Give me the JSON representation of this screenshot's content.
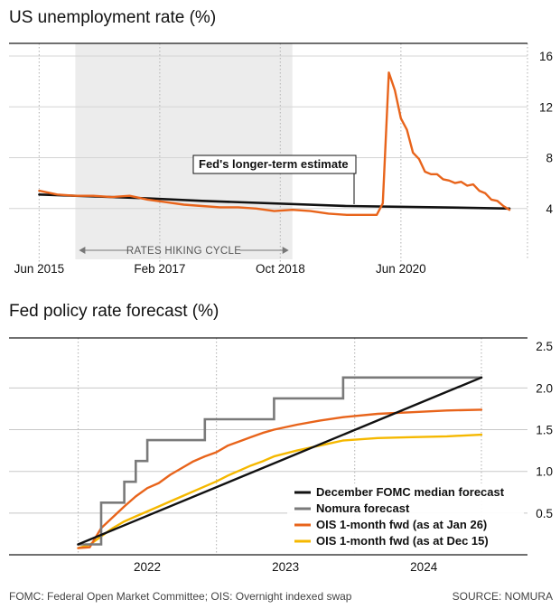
{
  "colors": {
    "black": "#111111",
    "gray": "#7a7a7a",
    "orange": "#e8641b",
    "gold": "#f5b800",
    "band": "#ececec",
    "grid": "#bdbdbd"
  },
  "footer": {
    "note": "FOMC: Federal Open Market Committee; OIS: Overnight indexed swap",
    "source": "SOURCE: NOMURA"
  },
  "chart_data": [
    {
      "type": "line",
      "title": "US unemployment rate (%)",
      "xlabel": "",
      "ylabel": "",
      "x_tick_labels": [
        "Jun 2015",
        "Feb 2017",
        "Oct 2018",
        "Jun 2020"
      ],
      "y_tick_labels": [
        "4",
        "8",
        "12",
        "16"
      ],
      "ylim": [
        0,
        17
      ],
      "grid": true,
      "shaded_band": {
        "label": "RATES HIKING CYCLE",
        "from": "Dec 2015",
        "to": "Dec 2018"
      },
      "annotation": {
        "text": "Fed's longer-term estimate"
      },
      "series": [
        {
          "name": "Unemployment rate",
          "color": "orange",
          "points": [
            [
              "Jun 2015",
              5.4
            ],
            [
              "Sep 2015",
              5.1
            ],
            [
              "Dec 2015",
              5.0
            ],
            [
              "Mar 2016",
              5.0
            ],
            [
              "Jun 2016",
              4.9
            ],
            [
              "Sep 2016",
              5.0
            ],
            [
              "Dec 2016",
              4.7
            ],
            [
              "Mar 2017",
              4.5
            ],
            [
              "Jun 2017",
              4.3
            ],
            [
              "Sep 2017",
              4.2
            ],
            [
              "Dec 2017",
              4.1
            ],
            [
              "Mar 2018",
              4.1
            ],
            [
              "Jun 2018",
              4.0
            ],
            [
              "Sep 2018",
              3.8
            ],
            [
              "Dec 2018",
              3.9
            ],
            [
              "Mar 2019",
              3.8
            ],
            [
              "Jun 2019",
              3.6
            ],
            [
              "Sep 2019",
              3.5
            ],
            [
              "Dec 2019",
              3.5
            ],
            [
              "Feb 2020",
              3.5
            ],
            [
              "Mar 2020",
              4.4
            ],
            [
              "Apr 2020",
              14.7
            ],
            [
              "May 2020",
              13.3
            ],
            [
              "Jun 2020",
              11.1
            ],
            [
              "Jul 2020",
              10.2
            ],
            [
              "Aug 2020",
              8.4
            ],
            [
              "Sep 2020",
              7.9
            ],
            [
              "Oct 2020",
              6.9
            ],
            [
              "Nov 2020",
              6.7
            ],
            [
              "Dec 2020",
              6.7
            ],
            [
              "Jan 2021",
              6.3
            ],
            [
              "Feb 2021",
              6.2
            ],
            [
              "Mar 2021",
              6.0
            ],
            [
              "Apr 2021",
              6.1
            ],
            [
              "May 2021",
              5.8
            ],
            [
              "Jun 2021",
              5.9
            ],
            [
              "Jul 2021",
              5.4
            ],
            [
              "Aug 2021",
              5.2
            ],
            [
              "Sep 2021",
              4.7
            ],
            [
              "Oct 2021",
              4.6
            ],
            [
              "Nov 2021",
              4.2
            ],
            [
              "Dec 2021",
              3.9
            ]
          ]
        },
        {
          "name": "Fed's longer-term estimate",
          "color": "black",
          "points": [
            [
              "Jun 2015",
              5.1
            ],
            [
              "Dec 2016",
              4.8
            ],
            [
              "Sep 2017",
              4.6
            ],
            [
              "Sep 2019",
              4.2
            ],
            [
              "Dec 2020",
              4.1
            ],
            [
              "Dec 2021",
              4.0
            ]
          ]
        }
      ]
    },
    {
      "type": "line",
      "title": "Fed policy rate forecast (%)",
      "xlabel": "",
      "ylabel": "",
      "x_tick_labels": [
        "2022",
        "2023",
        "2024"
      ],
      "y_tick_labels": [
        "0.5",
        "1.0",
        "1.5",
        "2.0",
        "2.5"
      ],
      "ylim": [
        0,
        2.6
      ],
      "grid": true,
      "legend_position": "bottom-right",
      "series": [
        {
          "name": "December FOMC median forecast",
          "color": "black",
          "points": [
            [
              "Jan 2022",
              0.125
            ],
            [
              "Dec 2024",
              2.125
            ]
          ]
        },
        {
          "name": "Nomura forecast",
          "color": "gray",
          "points": [
            [
              "Jan 2022",
              0.125
            ],
            [
              "Mar 2022",
              0.125
            ],
            [
              "Mar 2022",
              0.625
            ],
            [
              "May 2022",
              0.625
            ],
            [
              "May 2022",
              0.875
            ],
            [
              "Jun 2022",
              0.875
            ],
            [
              "Jun 2022",
              1.125
            ],
            [
              "Jul 2022",
              1.125
            ],
            [
              "Jul 2022",
              1.375
            ],
            [
              "Dec 2022",
              1.375
            ],
            [
              "Dec 2022",
              1.625
            ],
            [
              "Jun 2023",
              1.625
            ],
            [
              "Jun 2023",
              1.875
            ],
            [
              "Dec 2023",
              1.875
            ],
            [
              "Dec 2023",
              2.125
            ],
            [
              "Dec 2024",
              2.125
            ]
          ]
        },
        {
          "name": "OIS 1-month fwd (as at Jan 26)",
          "color": "orange",
          "points": [
            [
              "Jan 2022",
              0.08
            ],
            [
              "Feb 2022",
              0.09
            ],
            [
              "Mar 2022",
              0.32
            ],
            [
              "Apr 2022",
              0.45
            ],
            [
              "May 2022",
              0.58
            ],
            [
              "Jun 2022",
              0.7
            ],
            [
              "Jul 2022",
              0.8
            ],
            [
              "Aug 2022",
              0.86
            ],
            [
              "Sep 2022",
              0.96
            ],
            [
              "Oct 2022",
              1.04
            ],
            [
              "Nov 2022",
              1.12
            ],
            [
              "Dec 2022",
              1.18
            ],
            [
              "Jan 2023",
              1.23
            ],
            [
              "Feb 2023",
              1.31
            ],
            [
              "Mar 2023",
              1.36
            ],
            [
              "Apr 2023",
              1.41
            ],
            [
              "May 2023",
              1.46
            ],
            [
              "Jun 2023",
              1.5
            ],
            [
              "Aug 2023",
              1.56
            ],
            [
              "Oct 2023",
              1.61
            ],
            [
              "Dec 2023",
              1.65
            ],
            [
              "Mar 2024",
              1.69
            ],
            [
              "Jun 2024",
              1.71
            ],
            [
              "Sep 2024",
              1.73
            ],
            [
              "Dec 2024",
              1.74
            ]
          ]
        },
        {
          "name": "OIS 1-month fwd (as at Dec 15)",
          "color": "gold",
          "points": [
            [
              "Jan 2022",
              0.08
            ],
            [
              "Feb 2022",
              0.12
            ],
            [
              "Mar 2022",
              0.22
            ],
            [
              "Apr 2022",
              0.32
            ],
            [
              "May 2022",
              0.4
            ],
            [
              "Jun 2022",
              0.46
            ],
            [
              "Jul 2022",
              0.52
            ],
            [
              "Aug 2022",
              0.58
            ],
            [
              "Sep 2022",
              0.64
            ],
            [
              "Oct 2022",
              0.7
            ],
            [
              "Nov 2022",
              0.76
            ],
            [
              "Dec 2022",
              0.82
            ],
            [
              "Jan 2023",
              0.88
            ],
            [
              "Feb 2023",
              0.95
            ],
            [
              "Mar 2023",
              1.01
            ],
            [
              "Apr 2023",
              1.07
            ],
            [
              "May 2023",
              1.12
            ],
            [
              "Jun 2023",
              1.18
            ],
            [
              "Aug 2023",
              1.25
            ],
            [
              "Oct 2023",
              1.31
            ],
            [
              "Dec 2023",
              1.37
            ],
            [
              "Mar 2024",
              1.4
            ],
            [
              "Jun 2024",
              1.41
            ],
            [
              "Sep 2024",
              1.42
            ],
            [
              "Dec 2024",
              1.44
            ]
          ]
        }
      ]
    }
  ]
}
